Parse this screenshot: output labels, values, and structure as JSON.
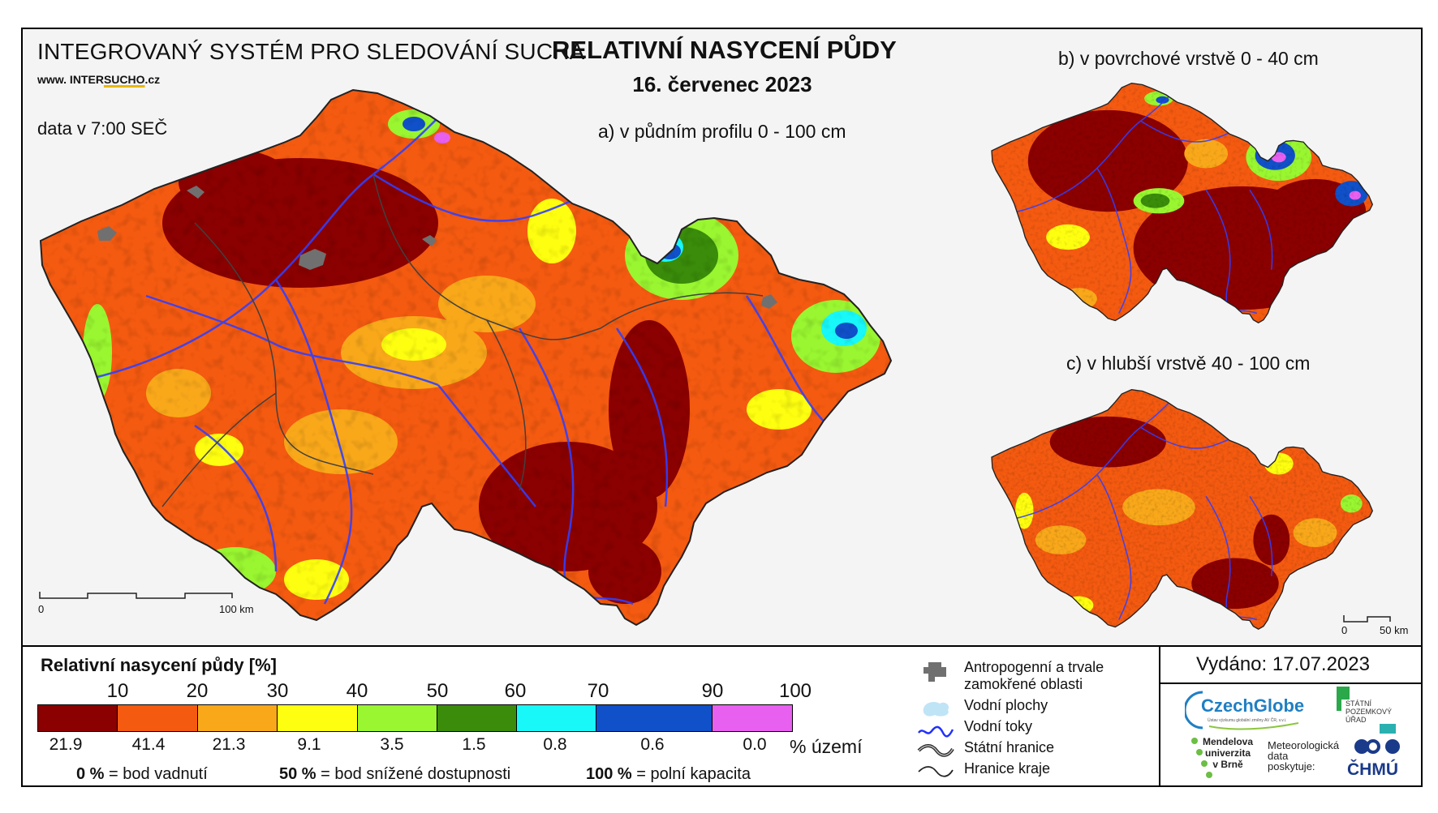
{
  "header": {
    "system_title": "INTEGROVANÝ SYSTÉM PRO SLEDOVÁNÍ SUCHA",
    "website_prefix": "www. INTER",
    "website_highlight": "SUCHO",
    "website_suffix": ".cz",
    "data_time": "data v 7:00 SEČ",
    "main_title": "RELATIVNÍ NASYCENÍ PŮDY",
    "date": "16. červenec 2023"
  },
  "maps": {
    "a_label": "a) v půdním profilu 0 - 100 cm",
    "b_label": "b) v povrchové vrstvě 0 - 40 cm",
    "c_label": "c) v hlubší vrstvě 40 - 100 cm"
  },
  "scale_main": {
    "start": "0",
    "end": "100 km"
  },
  "scale_small": {
    "start": "0",
    "end": "50 km"
  },
  "legend": {
    "title": "Relativní nasycení půdy [%]",
    "ticks": [
      "10",
      "20",
      "30",
      "40",
      "50",
      "60",
      "70",
      "90",
      "100"
    ],
    "colors": [
      "#8b0000",
      "#f45a10",
      "#f9a81a",
      "#fefe10",
      "#99f630",
      "#3a8c0a",
      "#18f8f8",
      "#1050c8",
      "#e860f0"
    ],
    "percent_area": [
      "21.9",
      "41.4",
      "21.3",
      "9.1",
      "3.5",
      "1.5",
      "0.8",
      "0.6",
      "0.0"
    ],
    "percent_unit": "% území",
    "explanation": [
      {
        "value": "0 %",
        "text": "= bod vadnutí"
      },
      {
        "value": "50 %",
        "text": "= bod snížené dostupnosti"
      },
      {
        "value": "100 %",
        "text": "= polní kapacita"
      }
    ]
  },
  "symbols": {
    "anthropogenic": [
      "Antropogenní a trvale",
      "zamokřené oblasti"
    ],
    "water_areas": "Vodní plochy",
    "rivers": "Vodní toky",
    "state_border": "Státní hranice",
    "region_border": "Hranice kraje"
  },
  "issued": "Vydáno: 17.07.2023",
  "logos": {
    "czechglobe": "CzechGlobe",
    "czechglobe_sub": "Ústav výzkumu globální změny AV ČR, v.v.i.",
    "spu": [
      "STÁTNÍ",
      "POZEMKOVÝ",
      "ÚŘAD"
    ],
    "mendelu": [
      "Mendelova",
      "univerzita",
      "v Brně"
    ],
    "chmu_note": [
      "Meteorologická",
      "data",
      "poskytuje:"
    ],
    "chmu": "ČHMÚ"
  }
}
